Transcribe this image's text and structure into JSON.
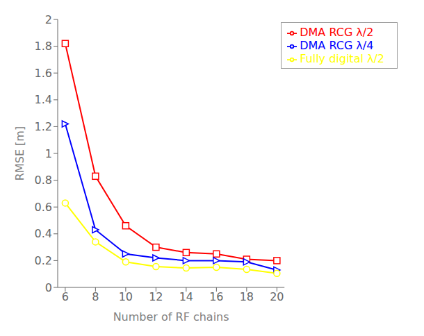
{
  "chart_data": {
    "type": "line",
    "xlabel": "Number of RF chains",
    "ylabel": "RMSE [m]",
    "x": [
      6,
      8,
      10,
      12,
      14,
      16,
      18,
      20
    ],
    "series": [
      {
        "name": "DMA RCG λ/2",
        "color": "#ff0000",
        "marker": "square",
        "values": [
          1.82,
          0.83,
          0.46,
          0.3,
          0.26,
          0.25,
          0.21,
          0.2
        ]
      },
      {
        "name": "DMA RCG λ/4",
        "color": "#0000ff",
        "marker": "triangle-right",
        "values": [
          1.22,
          0.43,
          0.25,
          0.22,
          0.2,
          0.2,
          0.19,
          0.13
        ]
      },
      {
        "name": "Fully digital λ/2",
        "color": "#ffff00",
        "marker": "circle",
        "values": [
          0.63,
          0.34,
          0.19,
          0.155,
          0.145,
          0.15,
          0.135,
          0.105
        ]
      }
    ],
    "xlim": [
      5.5,
      20.5
    ],
    "xticks": [
      6,
      8,
      10,
      12,
      14,
      16,
      18,
      20
    ],
    "ylim": [
      0,
      2
    ],
    "yticks": [
      0,
      0.2,
      0.4,
      0.6,
      0.8,
      1,
      1.2,
      1.4,
      1.6,
      1.8,
      2
    ],
    "grid": false,
    "legend": "upper right"
  }
}
